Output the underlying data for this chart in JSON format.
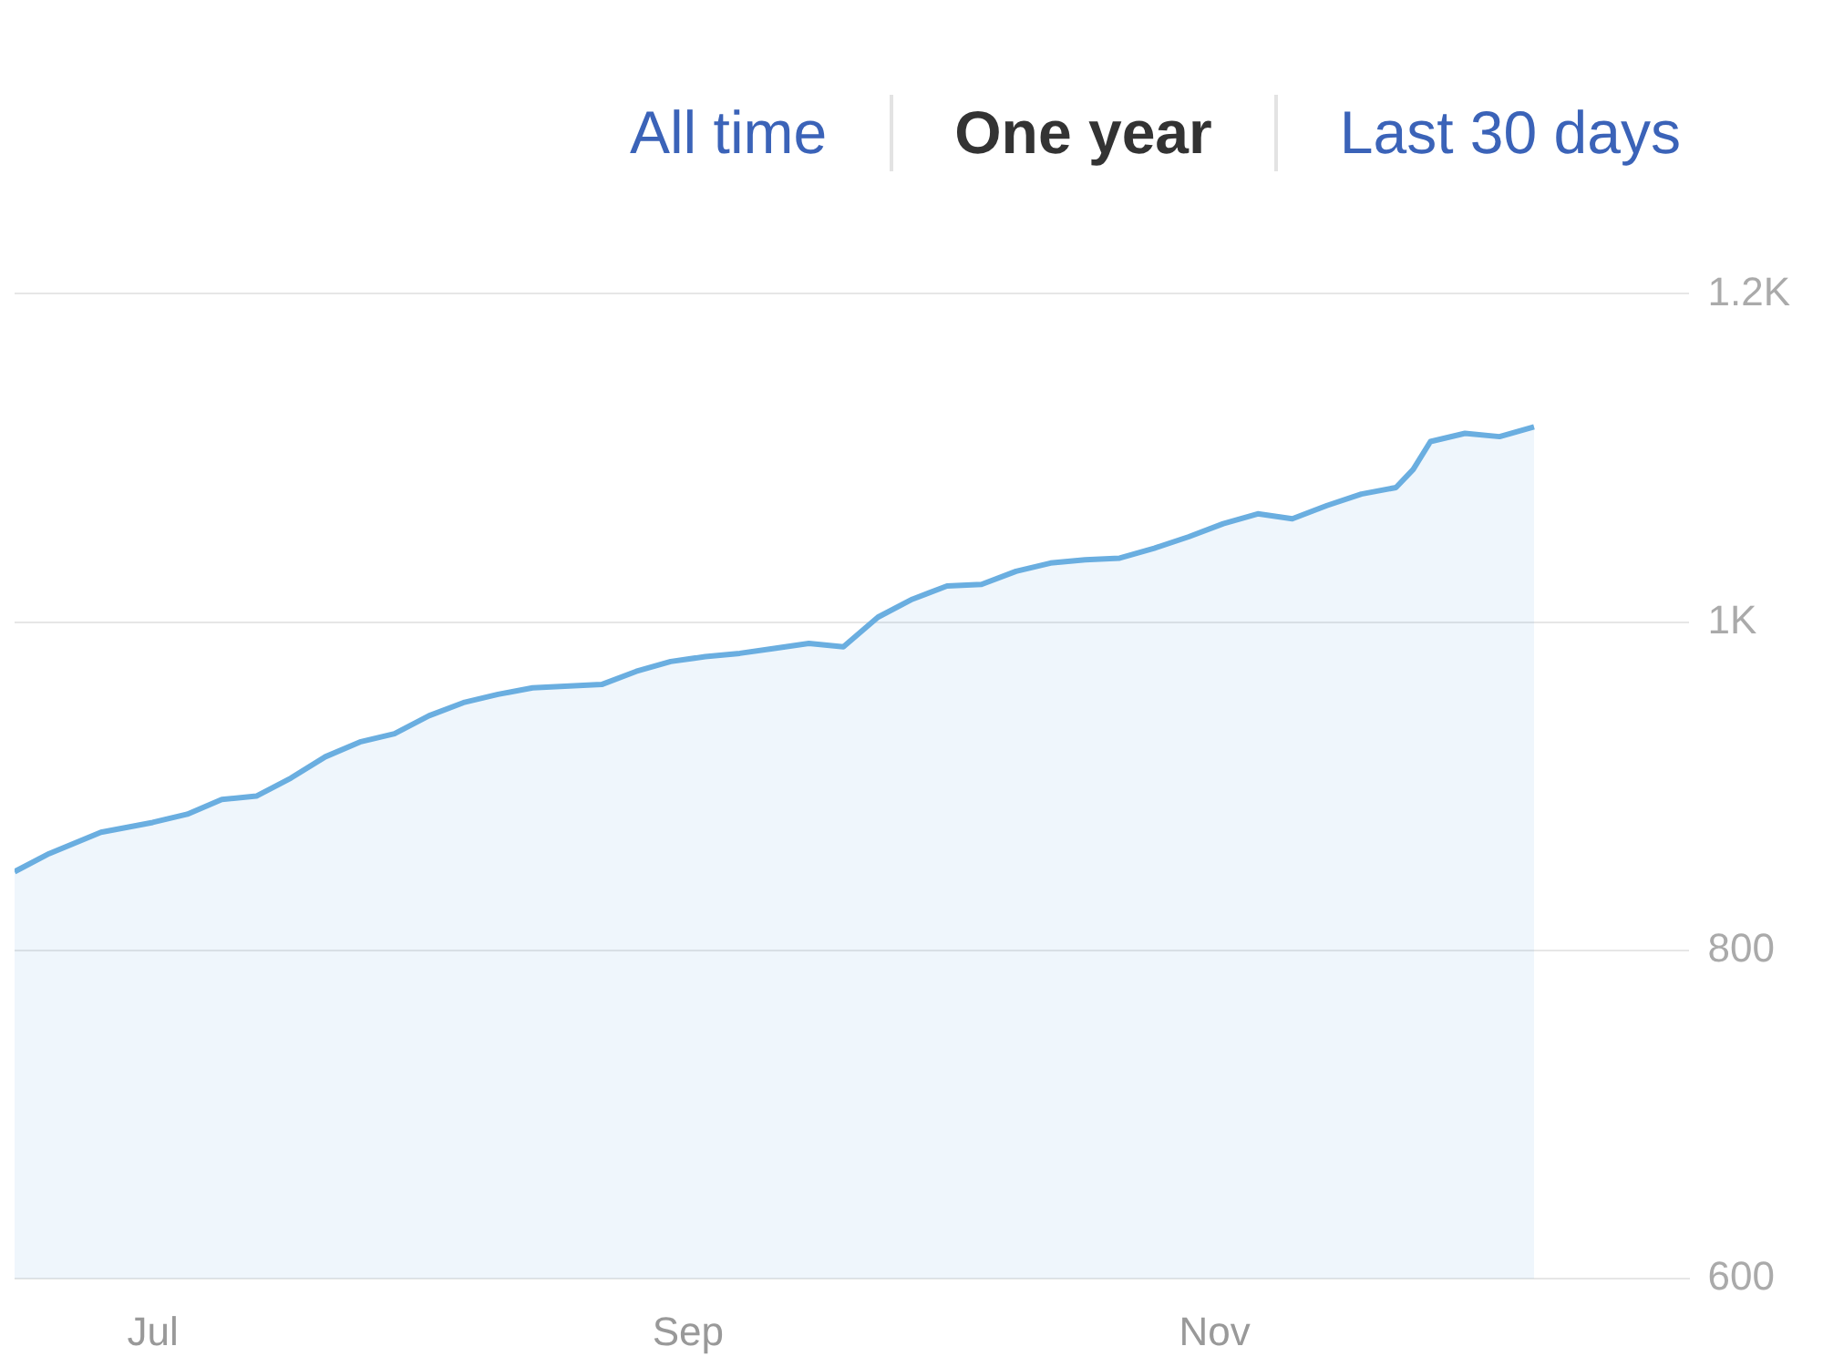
{
  "chart_data": {
    "type": "area",
    "annotations": [
      "All time",
      "One year",
      "Last 30 days"
    ],
    "x": [
      "--06-15",
      "--06-19",
      "--06-25",
      "--07-01",
      "--07-05",
      "--07-09",
      "--07-13",
      "--07-17",
      "--07-21",
      "--07-25",
      "--07-29",
      "--08-02",
      "--08-06",
      "--08-10",
      "--08-14",
      "--08-22",
      "--08-26",
      "--08-30",
      "--09-03",
      "--09-07",
      "--09-11",
      "--09-15",
      "--09-19",
      "--09-23",
      "--09-27",
      "--10-01",
      "--10-05",
      "--10-09",
      "--10-13",
      "--10-17",
      "--10-21",
      "--10-25",
      "--10-29",
      "--11-02",
      "--11-06",
      "--11-10",
      "--11-14",
      "--11-18",
      "--11-22",
      "--11-24",
      "--11-26",
      "--11-30",
      "--12-04",
      "--12-08"
    ],
    "series": [
      {
        "color": "#6aaee0",
        "values": [
          848,
          859,
          872,
          878,
          883,
          892,
          894,
          905,
          918,
          927,
          932,
          943,
          951,
          956,
          960,
          962,
          970,
          976,
          979,
          981,
          984,
          987,
          985,
          1003,
          1014,
          1022,
          1023,
          1031,
          1036,
          1038,
          1039,
          1045,
          1052,
          1060,
          1066,
          1063,
          1071,
          1078,
          1082,
          1093,
          1110,
          1115,
          1113,
          1119
        ]
      }
    ],
    "xlim": [
      "--06-15",
      "--12-26"
    ],
    "xticks": [
      {
        "value": "--07-01",
        "label": "Jul"
      },
      {
        "value": "--09-01",
        "label": "Sep"
      },
      {
        "value": "--11-01",
        "label": "Nov"
      }
    ],
    "ylim": [
      600,
      1200
    ],
    "yticks": [
      {
        "value": 600,
        "label": "600"
      },
      {
        "value": 800,
        "label": "800"
      },
      {
        "value": 1000,
        "label": "1K"
      },
      {
        "value": 1200,
        "label": "1.2K"
      }
    ],
    "grid": "y",
    "legend": false,
    "marker": "none",
    "line_style": "solid"
  }
}
